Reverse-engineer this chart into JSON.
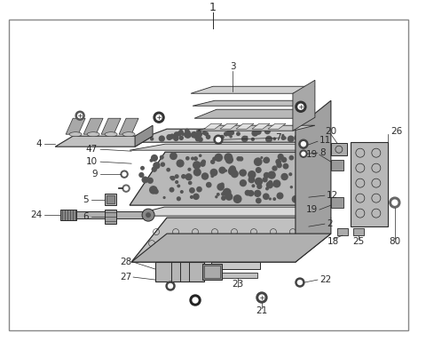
{
  "bg_color": "#ffffff",
  "border_color": "#999999",
  "line_color": "#333333",
  "fig_bg": "#ffffff",
  "inner_bg": "#ffffff",
  "lc": "#2a2a2a",
  "gray_dark": "#555555",
  "gray_mid": "#888888",
  "gray_light": "#cccccc",
  "gray_fill": "#aaaaaa",
  "label_fs": 7.5,
  "title_fs": 9
}
